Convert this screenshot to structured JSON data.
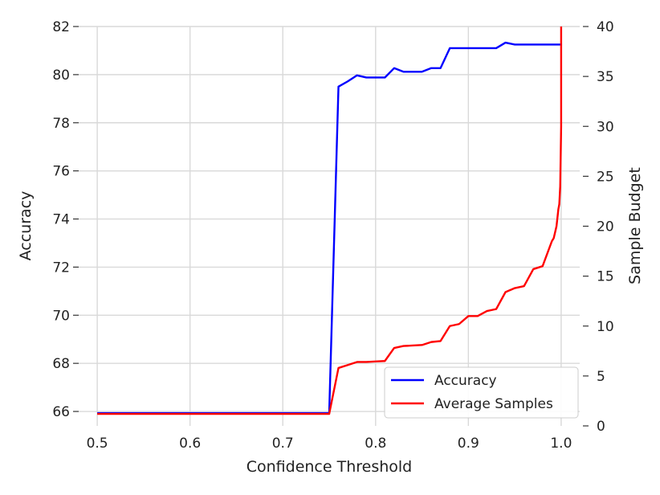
{
  "chart_data": {
    "type": "line",
    "title": "",
    "xlabel": "Confidence Threshold",
    "ylabel": "Accuracy",
    "y2label": "Sample Budget",
    "xlim": [
      0.48,
      1.02
    ],
    "ylim": [
      65.4,
      82.0
    ],
    "y2lim": [
      0,
      40
    ],
    "xticks": [
      0.5,
      0.6,
      0.7,
      0.8,
      0.9,
      1.0
    ],
    "xtick_labels": [
      "0.5",
      "0.6",
      "0.7",
      "0.8",
      "0.9",
      "1.0"
    ],
    "yticks": [
      66,
      68,
      70,
      72,
      74,
      76,
      78,
      80,
      82
    ],
    "ytick_labels": [
      "66",
      "68",
      "70",
      "72",
      "74",
      "76",
      "78",
      "80",
      "82"
    ],
    "y2ticks": [
      0,
      5,
      10,
      15,
      20,
      25,
      30,
      35,
      40
    ],
    "y2tick_labels": [
      "0",
      "5",
      "10",
      "15",
      "20",
      "25",
      "30",
      "35",
      "40"
    ],
    "grid": true,
    "legend_position": "lower-right",
    "series": [
      {
        "name": "Accuracy",
        "axis": "left",
        "color": "#0000ff",
        "x": [
          0.5,
          0.75,
          0.76,
          0.77,
          0.78,
          0.79,
          0.8,
          0.81,
          0.82,
          0.83,
          0.84,
          0.85,
          0.86,
          0.87,
          0.88,
          0.89,
          0.9,
          0.91,
          0.92,
          0.93,
          0.94,
          0.95,
          0.96,
          0.97,
          0.98,
          0.99,
          1.0
        ],
        "y": [
          65.93,
          65.93,
          79.5,
          79.72,
          79.97,
          79.88,
          79.88,
          79.88,
          80.27,
          80.12,
          80.12,
          80.12,
          80.27,
          80.27,
          81.1,
          81.1,
          81.1,
          81.1,
          81.1,
          81.1,
          81.33,
          81.25,
          81.25,
          81.25,
          81.25,
          81.25,
          81.25
        ]
      },
      {
        "name": "Average Samples",
        "axis": "right",
        "color": "#ff0000",
        "x": [
          0.5,
          0.75,
          0.76,
          0.77,
          0.78,
          0.79,
          0.8,
          0.81,
          0.82,
          0.83,
          0.84,
          0.85,
          0.86,
          0.87,
          0.88,
          0.89,
          0.9,
          0.91,
          0.92,
          0.93,
          0.94,
          0.95,
          0.96,
          0.97,
          0.98,
          0.99,
          0.992,
          0.995,
          0.997,
          0.998,
          0.999,
          1.0,
          1.0
        ],
        "y": [
          1.2,
          1.2,
          5.8,
          6.1,
          6.4,
          6.4,
          6.45,
          6.5,
          7.8,
          8.0,
          8.05,
          8.1,
          8.4,
          8.5,
          10.0,
          10.2,
          11.0,
          11.0,
          11.5,
          11.7,
          13.4,
          13.8,
          14.0,
          15.7,
          16.0,
          18.5,
          18.8,
          20.0,
          21.7,
          22.2,
          24.0,
          30.0,
          40.0
        ]
      }
    ]
  }
}
